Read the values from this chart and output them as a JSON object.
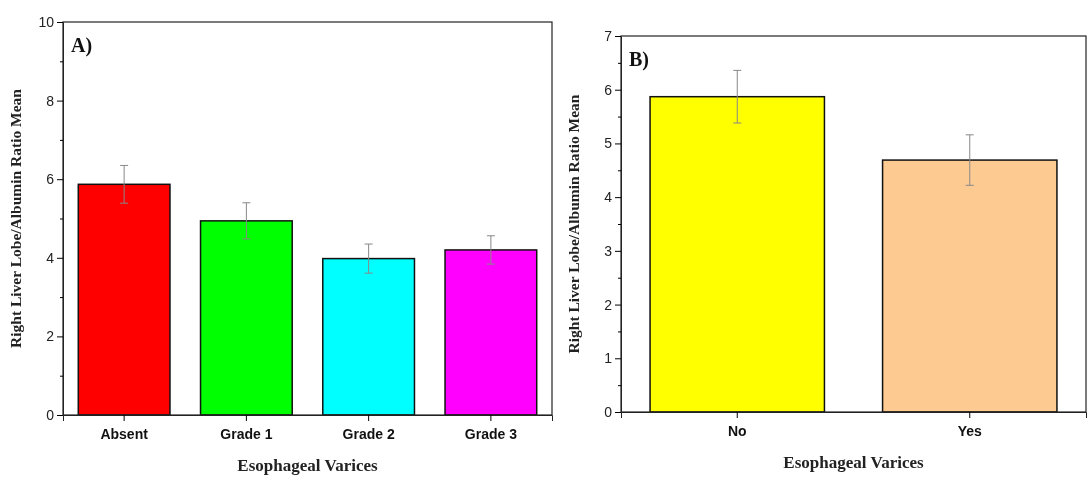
{
  "chart_data": [
    {
      "type": "bar",
      "title": "A)",
      "xlabel": "Esophageal Varices",
      "ylabel": "Right Liver Lobe/Albumin Ratio Mean",
      "categories": [
        "Absent",
        "Grade 1",
        "Grade 2",
        "Grade 3"
      ],
      "values": [
        5.87,
        4.94,
        3.98,
        4.2
      ],
      "errors": [
        0.48,
        0.46,
        0.37,
        0.36
      ],
      "colors": [
        "#ff0000",
        "#00ff00",
        "#00ffff",
        "#ff00ff"
      ],
      "ylim": [
        0,
        10
      ],
      "yticks": [
        0,
        {
          "value": 1,
          "label": null
        },
        2,
        {
          "value": 3,
          "label": null
        },
        4,
        {
          "value": 5,
          "label": null
        },
        6,
        {
          "value": 7,
          "label": null
        },
        8,
        {
          "value": 9,
          "label": null
        },
        10
      ],
      "grid": false
    },
    {
      "type": "bar",
      "title": "B)",
      "xlabel": "Esophageal Varices",
      "ylabel": "Right Liver Lobe/Albumin Ratio Mean",
      "categories": [
        "No",
        "Yes"
      ],
      "values": [
        5.87,
        4.69
      ],
      "errors": [
        0.49,
        0.47
      ],
      "colors": [
        "#ffff00",
        "#fdca92"
      ],
      "ylim": [
        0,
        7
      ],
      "yticks": [
        0,
        {
          "value": 0.5,
          "label": null
        },
        1,
        {
          "value": 1.5,
          "label": null
        },
        2,
        {
          "value": 2.5,
          "label": null
        },
        3,
        {
          "value": 3.5,
          "label": null
        },
        4,
        {
          "value": 4.5,
          "label": null
        },
        5,
        {
          "value": 5.5,
          "label": null
        },
        6,
        {
          "value": 6.5,
          "label": null
        },
        7
      ],
      "grid": false
    }
  ]
}
